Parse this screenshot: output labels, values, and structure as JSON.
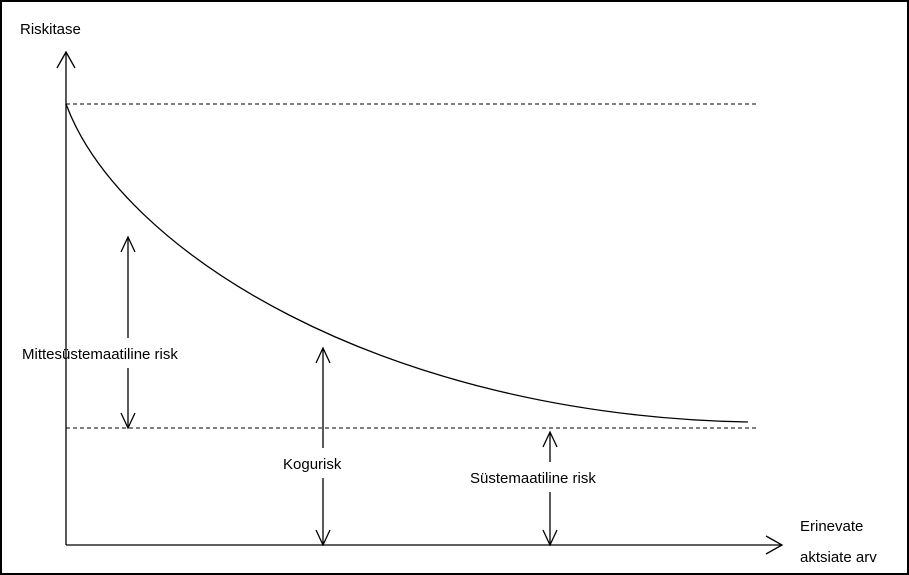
{
  "y_axis_label": "Riskitase",
  "x_axis_label": [
    "Erinevate",
    "aktsiate arv"
  ],
  "labels": {
    "unsystematic": "Mittesüstemaatiline risk",
    "total": "Kogurisk",
    "systematic": "Süstemaatiline risk"
  }
}
